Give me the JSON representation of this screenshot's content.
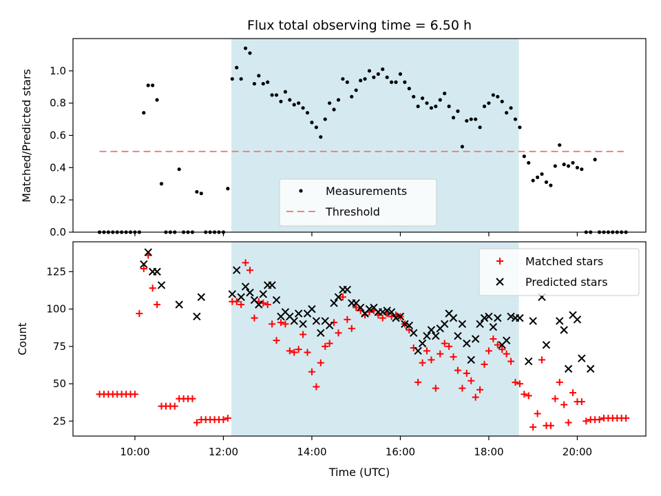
{
  "chart_data": [
    {
      "type": "scatter",
      "title": "Flux total observing time = 6.50 h",
      "xlabel": "",
      "ylabel": "Matched/Predicted stars",
      "xlim": [
        8.6,
        21.55
      ],
      "ylim": [
        0,
        1.2
      ],
      "yticks": [
        0.0,
        0.2,
        0.4,
        0.6,
        0.8,
        1.0
      ],
      "ytick_labels": [
        "0.0",
        "0.2",
        "0.4",
        "0.6",
        "0.8",
        "1.0"
      ],
      "shaded_region": {
        "x_start": 12.18,
        "x_end": 18.68,
        "color": "#d5eaf0"
      },
      "threshold": {
        "name": "Threshold",
        "value": 0.5,
        "x_start": 9.2,
        "x_end": 21.05,
        "color": "#f08080"
      },
      "legend_position": "lower-center",
      "series": [
        {
          "name": "Measurements",
          "color": "#000000",
          "x": [
            9.2,
            9.3,
            9.4,
            9.5,
            9.6,
            9.7,
            9.8,
            9.9,
            10.0,
            10.1,
            10.2,
            10.3,
            10.4,
            10.5,
            10.6,
            10.7,
            10.8,
            10.9,
            11.0,
            11.1,
            11.2,
            11.3,
            11.4,
            11.5,
            11.6,
            11.7,
            11.8,
            11.9,
            12.0,
            12.1,
            12.2,
            12.3,
            12.4,
            12.5,
            12.6,
            12.7,
            12.8,
            12.9,
            13.0,
            13.1,
            13.2,
            13.3,
            13.4,
            13.5,
            13.6,
            13.7,
            13.8,
            13.9,
            14.0,
            14.1,
            14.2,
            14.3,
            14.4,
            14.5,
            14.6,
            14.7,
            14.8,
            14.9,
            15.0,
            15.1,
            15.2,
            15.3,
            15.4,
            15.5,
            15.6,
            15.7,
            15.8,
            15.9,
            16.0,
            16.1,
            16.2,
            16.3,
            16.4,
            16.5,
            16.6,
            16.7,
            16.8,
            16.9,
            17.0,
            17.1,
            17.2,
            17.3,
            17.4,
            17.5,
            17.6,
            17.7,
            17.8,
            17.9,
            18.0,
            18.1,
            18.2,
            18.3,
            18.4,
            18.5,
            18.6,
            18.7,
            18.8,
            18.9,
            19.0,
            19.1,
            19.2,
            19.3,
            19.4,
            19.5,
            19.6,
            19.7,
            19.8,
            19.9,
            20.0,
            20.1,
            20.2,
            20.3,
            20.4,
            20.5,
            20.6,
            20.7,
            20.8,
            20.9,
            21.0,
            21.1
          ],
          "y": [
            0,
            0,
            0,
            0,
            0,
            0,
            0,
            0,
            0,
            0,
            0.74,
            0.91,
            0.91,
            0.82,
            0.3,
            0,
            0,
            0,
            0.39,
            0,
            0,
            0,
            0.25,
            0.24,
            0,
            0,
            0,
            0,
            0,
            0.27,
            0.95,
            1.02,
            0.95,
            1.14,
            1.11,
            0.92,
            0.97,
            0.92,
            0.93,
            0.85,
            0.85,
            0.81,
            0.87,
            0.82,
            0.79,
            0.8,
            0.77,
            0.74,
            0.68,
            0.65,
            0.59,
            0.7,
            0.8,
            0.76,
            0.82,
            0.95,
            0.93,
            0.84,
            0.88,
            0.94,
            0.95,
            1.0,
            0.96,
            0.98,
            1.01,
            0.96,
            0.93,
            0.93,
            0.98,
            0.93,
            0.89,
            0.84,
            0.78,
            0.83,
            0.8,
            0.77,
            0.78,
            0.82,
            0.86,
            0.78,
            0.71,
            0.75,
            0.53,
            0.69,
            0.7,
            0.7,
            0.65,
            0.78,
            0.8,
            0.85,
            0.84,
            0.81,
            0.74,
            0.77,
            0.7,
            0.65,
            0.47,
            0.43,
            0.32,
            0.34,
            0.36,
            0.31,
            0.29,
            0.41,
            0.54,
            0.42,
            0.41,
            0.43,
            0.4,
            0.39,
            0,
            0,
            0.45,
            0,
            0,
            0,
            0,
            0,
            0,
            0
          ]
        }
      ]
    },
    {
      "type": "scatter",
      "title": "",
      "xlabel": "Time (UTC)",
      "ylabel": "Count",
      "xlim": [
        8.6,
        21.55
      ],
      "ylim": [
        15,
        145
      ],
      "yticks": [
        25,
        50,
        75,
        100,
        125
      ],
      "ytick_labels": [
        "25",
        "50",
        "75",
        "100",
        "125"
      ],
      "xticks": [
        10,
        12,
        14,
        16,
        18,
        20
      ],
      "xtick_labels": [
        "10:00",
        "12:00",
        "14:00",
        "16:00",
        "18:00",
        "20:00"
      ],
      "shaded_region": {
        "x_start": 12.18,
        "x_end": 18.68,
        "color": "#d5eaf0"
      },
      "legend_position": "upper-right",
      "series": [
        {
          "name": "Matched stars",
          "marker": "plus",
          "color": "#ff0000",
          "x": [
            9.2,
            9.3,
            9.4,
            9.5,
            9.6,
            9.7,
            9.8,
            9.9,
            10.0,
            10.1,
            10.2,
            10.3,
            10.4,
            10.5,
            10.6,
            10.7,
            10.8,
            10.9,
            11.0,
            11.1,
            11.2,
            11.3,
            11.4,
            11.5,
            11.6,
            11.7,
            11.8,
            11.9,
            12.0,
            12.1,
            12.2,
            12.3,
            12.4,
            12.5,
            12.6,
            12.7,
            12.8,
            12.9,
            13.0,
            13.1,
            13.2,
            13.3,
            13.4,
            13.5,
            13.6,
            13.7,
            13.8,
            13.9,
            14.0,
            14.1,
            14.2,
            14.3,
            14.4,
            14.5,
            14.6,
            14.7,
            14.8,
            14.9,
            15.0,
            15.1,
            15.2,
            15.3,
            15.4,
            15.5,
            15.6,
            15.7,
            15.8,
            15.9,
            16.0,
            16.1,
            16.2,
            16.3,
            16.4,
            16.5,
            16.6,
            16.7,
            16.8,
            16.9,
            17.0,
            17.1,
            17.2,
            17.3,
            17.4,
            17.5,
            17.6,
            17.7,
            17.8,
            17.9,
            18.0,
            18.1,
            18.2,
            18.3,
            18.4,
            18.5,
            18.6,
            18.7,
            18.8,
            18.9,
            19.0,
            19.1,
            19.2,
            19.3,
            19.4,
            19.5,
            19.6,
            19.7,
            19.8,
            19.9,
            20.0,
            20.1,
            20.2,
            20.3,
            20.4,
            20.5,
            20.6,
            20.7,
            20.8,
            20.9,
            21.0,
            21.1
          ],
          "y": [
            43,
            43,
            43,
            43,
            43,
            43,
            43,
            43,
            43,
            97,
            127,
            136,
            114,
            103,
            35,
            35,
            35,
            35,
            40,
            40,
            40,
            40,
            24,
            26,
            26,
            26,
            26,
            26,
            26,
            27,
            105,
            105,
            103,
            131,
            126,
            94,
            105,
            104,
            103,
            90,
            79,
            91,
            90,
            72,
            71,
            73,
            83,
            71,
            58,
            48,
            64,
            75,
            77,
            91,
            84,
            108,
            93,
            87,
            101,
            99,
            96,
            98,
            99,
            96,
            94,
            97,
            95,
            96,
            95,
            90,
            86,
            74,
            51,
            64,
            72,
            66,
            47,
            70,
            77,
            75,
            68,
            59,
            47,
            57,
            52,
            41,
            46,
            63,
            72,
            80,
            76,
            73,
            70,
            65,
            51,
            50,
            43,
            42,
            21,
            30,
            66,
            22,
            22,
            40,
            51,
            36,
            24,
            44,
            38,
            38,
            25,
            26,
            26,
            26,
            27,
            27,
            27,
            27,
            27,
            27
          ]
        },
        {
          "name": "Predicted stars",
          "marker": "x",
          "color": "#000000",
          "x": [
            10.2,
            10.3,
            10.4,
            10.5,
            10.6,
            11.0,
            11.4,
            11.5,
            12.2,
            12.3,
            12.4,
            12.5,
            12.6,
            12.7,
            12.8,
            12.9,
            13.0,
            13.1,
            13.2,
            13.3,
            13.4,
            13.5,
            13.6,
            13.7,
            13.8,
            13.9,
            14.0,
            14.1,
            14.2,
            14.3,
            14.4,
            14.5,
            14.6,
            14.7,
            14.8,
            14.9,
            15.0,
            15.1,
            15.2,
            15.3,
            15.4,
            15.5,
            15.6,
            15.7,
            15.8,
            15.9,
            16.0,
            16.1,
            16.2,
            16.3,
            16.4,
            16.5,
            16.6,
            16.7,
            16.8,
            16.9,
            17.0,
            17.1,
            17.2,
            17.3,
            17.4,
            17.5,
            17.6,
            17.7,
            17.8,
            17.9,
            18.0,
            18.1,
            18.2,
            18.3,
            18.4,
            18.5,
            18.6,
            18.7,
            18.9,
            19.0,
            19.2,
            19.3,
            19.6,
            19.7,
            19.8,
            19.9,
            20.0,
            20.1,
            20.3
          ],
          "y": [
            130,
            138,
            125,
            125,
            116,
            103,
            95,
            108,
            110,
            126,
            108,
            115,
            111,
            106,
            103,
            110,
            116,
            116,
            106,
            95,
            98,
            95,
            92,
            97,
            90,
            97,
            100,
            92,
            84,
            92,
            89,
            104,
            108,
            113,
            113,
            104,
            104,
            101,
            97,
            100,
            101,
            98,
            98,
            99,
            98,
            94,
            95,
            90,
            89,
            84,
            72,
            77,
            82,
            86,
            82,
            87,
            90,
            97,
            94,
            82,
            90,
            77,
            66,
            80,
            90,
            94,
            95,
            88,
            94,
            76,
            79,
            95,
            94,
            94,
            65,
            92,
            108,
            76,
            92,
            86,
            60,
            96,
            93,
            67,
            60
          ]
        }
      ]
    }
  ]
}
